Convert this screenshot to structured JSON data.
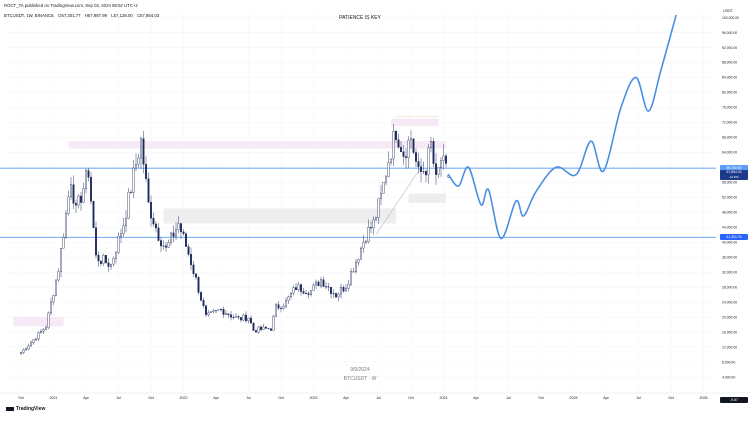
{
  "header": {
    "published": "ROCT_TA published on TradingView.com, Sep 02, 2024 08:02 UTC+2",
    "symbol": "BTCUSDT, 1W, BINANCE",
    "open": "O57,301.77",
    "high": "H57,987.99",
    "low": "L57,128.00",
    "close": "C57,854.03"
  },
  "title": "PATIENCE IS KEY",
  "watermark": {
    "date": "9/9/2024",
    "symbol": "BTCUSDT · W"
  },
  "footer": {
    "logo": "TradingView"
  },
  "price_tags": {
    "upper_line": "59,760.00",
    "current_price": "57,854.03",
    "current_sub": "1d 16h",
    "lower_line": "41,301.76",
    "bottom": "-9.87"
  },
  "colors": {
    "candle_up": "#ffffff",
    "candle_down": "#1e2a5a",
    "candle_outline": "#1e2a5a",
    "hline": "#5b9cf6",
    "projection": "#4a90e2",
    "zone_pink": "#f4e8f4",
    "zone_gray": "#ececec",
    "price_tag_blue": "#1e3a8a",
    "price_tag_light": "#2962ff"
  },
  "chart_data": {
    "type": "candlestick",
    "symbol": "BTCUSDT",
    "interval": "1W",
    "exchange": "BINANCE",
    "title": "PATIENCE IS KEY",
    "y_axis": {
      "label": "USDT",
      "ticks": [
        4000,
        8000,
        12000,
        16000,
        20000,
        24000,
        28000,
        32000,
        36000,
        40000,
        44000,
        48000,
        52000,
        56000,
        60000,
        64000,
        68000,
        72000,
        76000,
        80000,
        84000,
        88000,
        92000,
        96000,
        100000
      ],
      "tick_labels": [
        "4,000.00",
        "8,000.00",
        "12,000.00",
        "16,000.00",
        "20,000.00",
        "24,000.00",
        "28,000.00",
        "32,000.00",
        "36,000.00",
        "40,000.00",
        "44,000.00",
        "48,000.00",
        "52,000.00",
        "56,000.00",
        "60,000.00",
        "64,000.00",
        "68,000.00",
        "72,000.00",
        "76,000.00",
        "80,000.00",
        "84,000.00",
        "88,000.00",
        "92,000.00",
        "96,000.00",
        "100,000.00"
      ],
      "ylim": [
        0,
        102000
      ]
    },
    "x_axis": {
      "tick_labels": [
        "Oct",
        "2021",
        "Apr",
        "Jul",
        "Oct",
        "2022",
        "Apr",
        "Jul",
        "Oct",
        "2023",
        "Apr",
        "Jul",
        "Oct",
        "2024",
        "Apr",
        "Jul",
        "Oct",
        "2025",
        "Apr",
        "Jul",
        "Oct",
        "2026"
      ],
      "tick_weeks": [
        0,
        13,
        26,
        39,
        52,
        65,
        78,
        91,
        104,
        117,
        130,
        143,
        156,
        169,
        182,
        195,
        208,
        221,
        234,
        247,
        260,
        273
      ],
      "xlim": [
        -6,
        278
      ]
    },
    "anchors": [
      [
        0,
        10500
      ],
      [
        10,
        17500
      ],
      [
        15,
        33000
      ],
      [
        20,
        57000
      ],
      [
        22,
        48000
      ],
      [
        27,
        59000
      ],
      [
        30,
        36000
      ],
      [
        36,
        34000
      ],
      [
        41,
        45000
      ],
      [
        46,
        61000
      ],
      [
        48,
        67000
      ],
      [
        51,
        50000
      ],
      [
        55,
        42000
      ],
      [
        58,
        38000
      ],
      [
        63,
        45000
      ],
      [
        67,
        37000
      ],
      [
        70,
        30000
      ],
      [
        74,
        20000
      ],
      [
        77,
        21000
      ],
      [
        80,
        22000
      ],
      [
        84,
        20500
      ],
      [
        87,
        19500
      ],
      [
        91,
        20000
      ],
      [
        93,
        16500
      ],
      [
        100,
        17000
      ],
      [
        102,
        22500
      ],
      [
        106,
        24000
      ],
      [
        110,
        28000
      ],
      [
        116,
        27000
      ],
      [
        120,
        30000
      ],
      [
        126,
        26000
      ],
      [
        130,
        28500
      ],
      [
        134,
        35000
      ],
      [
        138,
        42000
      ],
      [
        141,
        45000
      ],
      [
        144,
        52000
      ],
      [
        147,
        62000
      ],
      [
        150,
        70000
      ],
      [
        153,
        64000
      ],
      [
        156,
        68000
      ],
      [
        159,
        58000
      ],
      [
        162,
        60000
      ],
      [
        164,
        66000
      ],
      [
        166,
        56000
      ],
      [
        168,
        62000
      ],
      [
        170,
        59000
      ],
      [
        171,
        57854
      ]
    ],
    "projection": [
      [
        171,
        58000
      ],
      [
        175,
        55000
      ],
      [
        179,
        60000
      ],
      [
        184,
        50000
      ],
      [
        187,
        54000
      ],
      [
        192,
        41000
      ],
      [
        198,
        51000
      ],
      [
        201,
        47000
      ],
      [
        206,
        53500
      ],
      [
        214,
        60000
      ],
      [
        222,
        58000
      ],
      [
        228,
        67000
      ],
      [
        233,
        59000
      ],
      [
        240,
        76000
      ],
      [
        246,
        84000
      ],
      [
        251,
        75000
      ],
      [
        256,
        86000
      ],
      [
        262,
        100500
      ]
    ],
    "horizontal_levels": [
      59760,
      41301.76
    ],
    "zones": [
      {
        "x": [
          -3,
          17
        ],
        "y": [
          17500,
          20000
        ],
        "color": "pink"
      },
      {
        "x": [
          19,
          170
        ],
        "y": [
          65000,
          67000
        ],
        "color": "pink"
      },
      {
        "x": [
          57,
          150
        ],
        "y": [
          45000,
          49000
        ],
        "color": "gray"
      },
      {
        "x": [
          148,
          167
        ],
        "y": [
          71000,
          73000
        ],
        "color": "pink"
      },
      {
        "x": [
          155,
          170
        ],
        "y": [
          50500,
          53000
        ],
        "color": "gray"
      }
    ],
    "last": {
      "open": 57301.77,
      "high": 57987.99,
      "low": 57128.0,
      "close": 57854.03
    }
  }
}
